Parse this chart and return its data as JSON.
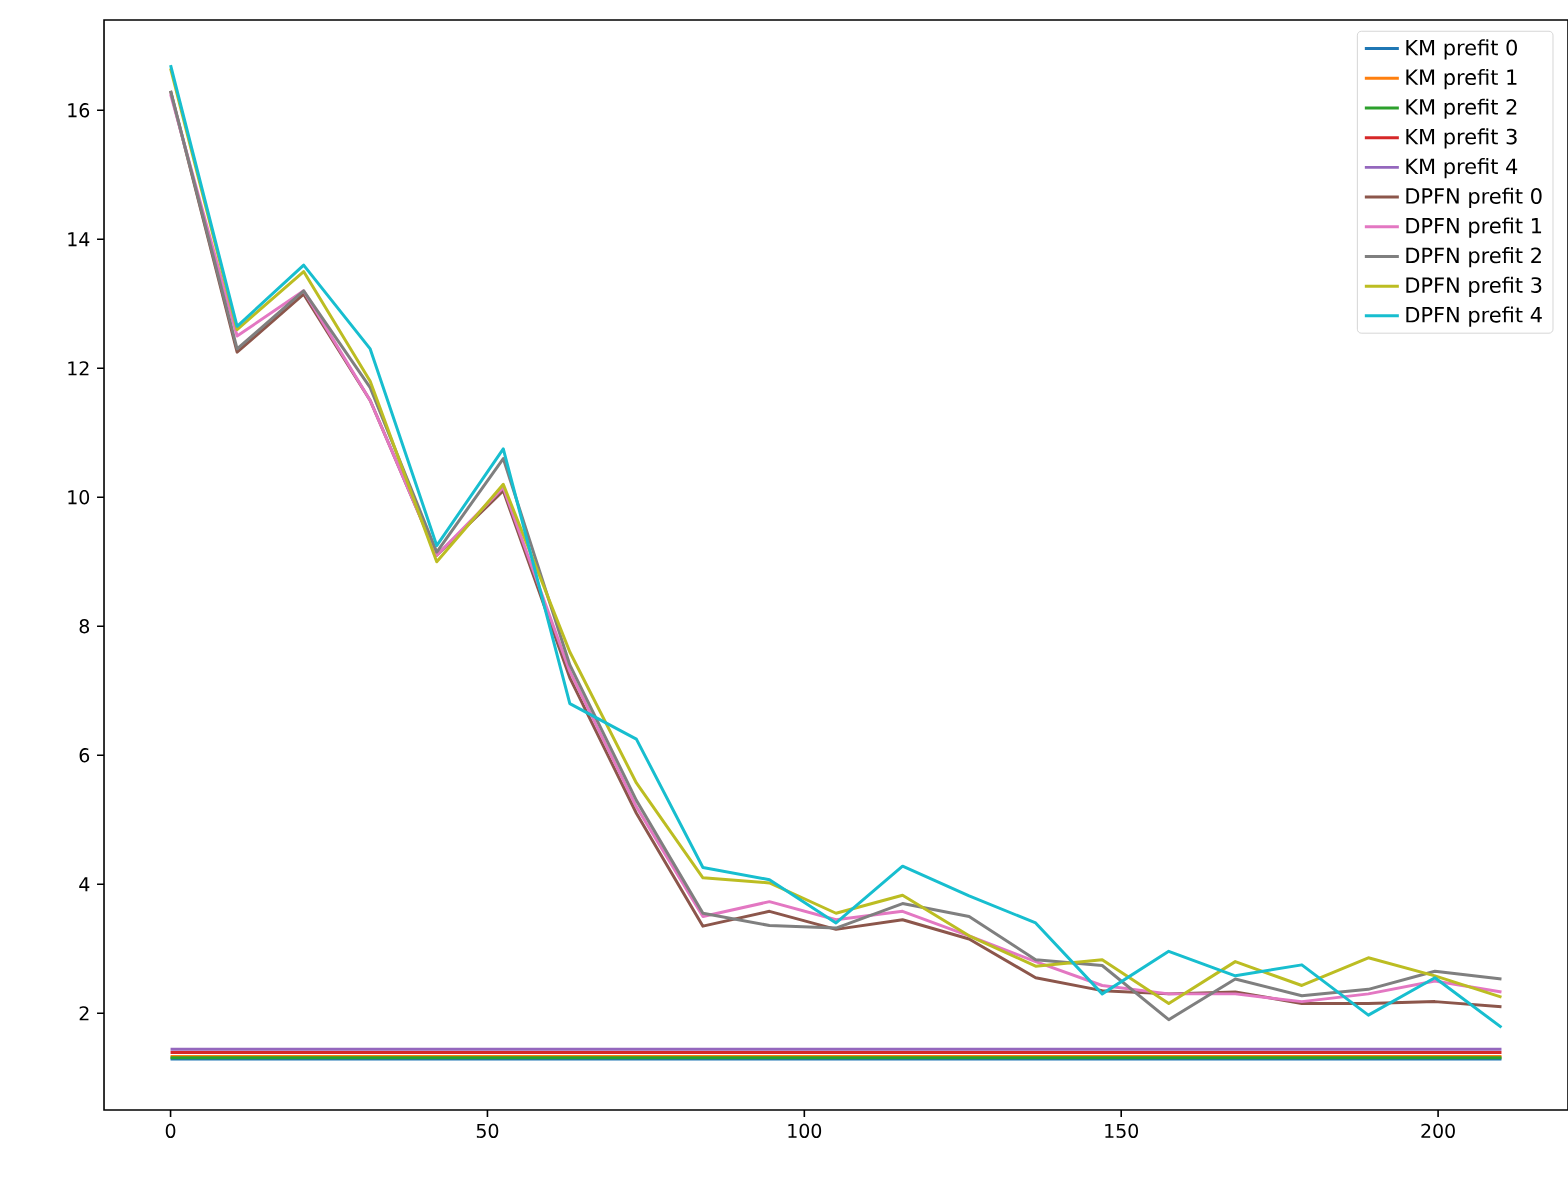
{
  "chart_data": {
    "type": "line",
    "x": [
      0,
      10.5,
      21,
      31.5,
      42,
      52.5,
      63,
      73.5,
      84,
      94.5,
      105,
      115.5,
      126,
      136.5,
      147,
      157.5,
      168,
      178.5,
      189,
      199.5,
      210
    ],
    "series": [
      {
        "name": "KM prefit 0",
        "color": "#1f77b4",
        "values": [
          1.29,
          1.29,
          1.29,
          1.29,
          1.29,
          1.29,
          1.29,
          1.29,
          1.29,
          1.29,
          1.29,
          1.29,
          1.29,
          1.29,
          1.29,
          1.29,
          1.29,
          1.29,
          1.29,
          1.29,
          1.29
        ]
      },
      {
        "name": "KM prefit 1",
        "color": "#ff7f0e",
        "values": [
          1.33,
          1.33,
          1.33,
          1.33,
          1.33,
          1.33,
          1.33,
          1.33,
          1.33,
          1.33,
          1.33,
          1.33,
          1.33,
          1.33,
          1.33,
          1.33,
          1.33,
          1.33,
          1.33,
          1.33,
          1.33
        ]
      },
      {
        "name": "KM prefit 2",
        "color": "#2ca02c",
        "values": [
          1.31,
          1.31,
          1.31,
          1.31,
          1.31,
          1.31,
          1.31,
          1.31,
          1.31,
          1.31,
          1.31,
          1.31,
          1.31,
          1.31,
          1.31,
          1.31,
          1.31,
          1.31,
          1.31,
          1.31,
          1.31
        ]
      },
      {
        "name": "KM prefit 3",
        "color": "#d62728",
        "values": [
          1.39,
          1.39,
          1.39,
          1.39,
          1.39,
          1.39,
          1.39,
          1.39,
          1.39,
          1.39,
          1.39,
          1.39,
          1.39,
          1.39,
          1.39,
          1.39,
          1.39,
          1.39,
          1.39,
          1.39,
          1.39
        ]
      },
      {
        "name": "KM prefit 4",
        "color": "#9467bd",
        "values": [
          1.44,
          1.44,
          1.44,
          1.44,
          1.44,
          1.44,
          1.44,
          1.44,
          1.44,
          1.44,
          1.44,
          1.44,
          1.44,
          1.44,
          1.44,
          1.44,
          1.44,
          1.44,
          1.44,
          1.44,
          1.44
        ]
      },
      {
        "name": "DPFN prefit 0",
        "color": "#8c564b",
        "values": [
          16.3,
          12.25,
          13.15,
          11.5,
          9.1,
          10.1,
          7.2,
          5.1,
          3.35,
          3.58,
          3.3,
          3.45,
          3.15,
          2.55,
          2.35,
          2.3,
          2.33,
          2.15,
          2.15,
          2.18,
          2.1
        ]
      },
      {
        "name": "DPFN prefit 1",
        "color": "#e377c2",
        "values": [
          16.25,
          12.5,
          13.2,
          11.5,
          9.1,
          10.15,
          7.3,
          5.2,
          3.5,
          3.73,
          3.45,
          3.58,
          3.2,
          2.8,
          2.43,
          2.3,
          2.3,
          2.18,
          2.3,
          2.5,
          2.33
        ]
      },
      {
        "name": "DPFN prefit 2",
        "color": "#7f7f7f",
        "values": [
          16.3,
          12.3,
          13.2,
          11.7,
          9.15,
          10.6,
          7.4,
          5.3,
          3.55,
          3.36,
          3.32,
          3.7,
          3.5,
          2.83,
          2.74,
          1.9,
          2.53,
          2.27,
          2.37,
          2.65,
          2.53
        ]
      },
      {
        "name": "DPFN prefit 3",
        "color": "#bcbd22",
        "values": [
          16.65,
          12.6,
          13.5,
          11.8,
          9.0,
          10.2,
          7.6,
          5.57,
          4.1,
          4.02,
          3.55,
          3.83,
          3.2,
          2.73,
          2.83,
          2.15,
          2.8,
          2.43,
          2.86,
          2.58,
          2.25
        ]
      },
      {
        "name": "DPFN prefit 4",
        "color": "#17becf",
        "values": [
          16.7,
          12.65,
          13.6,
          12.3,
          9.25,
          10.75,
          6.8,
          6.25,
          4.26,
          4.07,
          3.4,
          4.28,
          3.82,
          3.4,
          2.3,
          2.96,
          2.58,
          2.75,
          1.97,
          2.55,
          1.78
        ]
      }
    ],
    "xlim": [
      -10.5,
      220.5
    ],
    "ylim": [
      0.5,
      17.4
    ],
    "xticks": [
      0,
      50,
      100,
      150,
      200
    ],
    "yticks": [
      2,
      4,
      6,
      8,
      10,
      12,
      14,
      16
    ],
    "grid": false,
    "legend": "top right",
    "line_style": "solid",
    "marker": "none"
  }
}
